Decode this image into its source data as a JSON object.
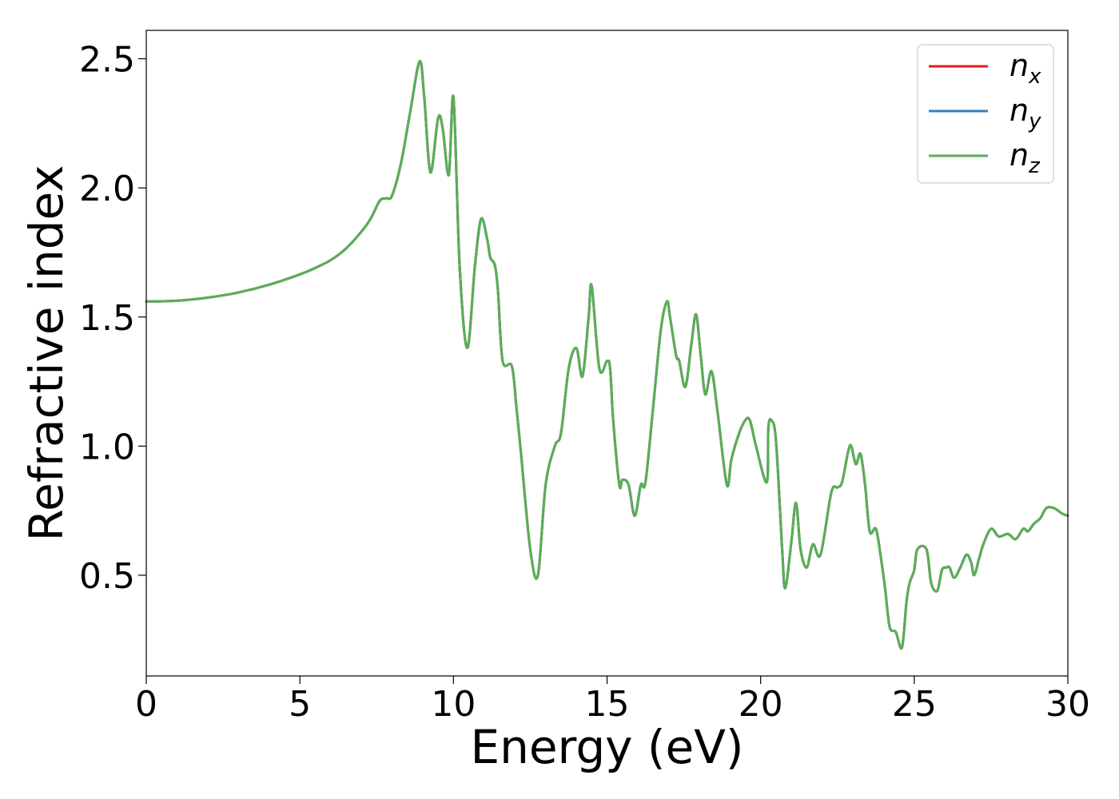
{
  "chart_data": {
    "type": "line",
    "title": "",
    "xlabel": "Energy (eV)",
    "ylabel": "Refractive index",
    "xlim": [
      0,
      30
    ],
    "ylim": [
      0.11,
      2.61
    ],
    "xticks": [
      0,
      5,
      10,
      15,
      20,
      25,
      30
    ],
    "yticks": [
      0.5,
      1.0,
      1.5,
      2.0,
      2.5
    ],
    "xtick_labels": [
      "0",
      "5",
      "10",
      "15",
      "20",
      "25",
      "30"
    ],
    "ytick_labels": [
      "0.5",
      "1.0",
      "1.5",
      "2.0",
      "2.5"
    ],
    "grid": false,
    "legend_position": "top-right",
    "x": [
      0,
      1,
      2,
      3,
      4,
      5,
      5.5,
      6,
      6.5,
      7,
      7.3,
      7.6,
      7.8,
      8.0,
      8.3,
      8.6,
      8.9,
      9.05,
      9.25,
      9.5,
      9.65,
      9.85,
      10.0,
      10.2,
      10.45,
      10.7,
      10.9,
      11.1,
      11.2,
      11.35,
      11.45,
      11.6,
      11.9,
      12.05,
      12.2,
      12.5,
      12.75,
      13.0,
      13.3,
      13.5,
      13.75,
      14.0,
      14.2,
      14.4,
      14.5,
      14.75,
      15.0,
      15.1,
      15.2,
      15.4,
      15.5,
      15.7,
      15.9,
      16.1,
      16.25,
      16.5,
      16.75,
      16.95,
      17.05,
      17.25,
      17.35,
      17.55,
      17.75,
      17.9,
      18.05,
      18.2,
      18.4,
      18.6,
      18.9,
      19.05,
      19.3,
      19.5,
      19.65,
      19.85,
      20.2,
      20.25,
      20.35,
      20.5,
      20.7,
      20.8,
      21.0,
      21.15,
      21.3,
      21.5,
      21.7,
      21.95,
      22.3,
      22.5,
      22.65,
      22.85,
      22.95,
      23.1,
      23.25,
      23.4,
      23.55,
      23.75,
      23.9,
      24.05,
      24.2,
      24.4,
      24.6,
      24.75,
      24.85,
      25.0,
      25.1,
      25.4,
      25.55,
      25.75,
      25.9,
      26.05,
      26.15,
      26.3,
      26.5,
      26.7,
      26.85,
      26.95,
      27.1,
      27.25,
      27.5,
      27.75,
      28.05,
      28.3,
      28.55,
      28.7,
      28.9,
      29.1,
      29.3,
      29.55,
      29.8,
      30.0
    ],
    "series": [
      {
        "name": "n_x",
        "color": "#e41a1c",
        "values": [
          1.56,
          1.563,
          1.575,
          1.595,
          1.625,
          1.665,
          1.69,
          1.72,
          1.765,
          1.83,
          1.88,
          1.95,
          1.96,
          1.97,
          2.1,
          2.3,
          2.49,
          2.35,
          2.06,
          2.27,
          2.23,
          2.05,
          2.35,
          1.7,
          1.38,
          1.7,
          1.88,
          1.8,
          1.73,
          1.7,
          1.6,
          1.33,
          1.31,
          1.15,
          0.97,
          0.6,
          0.5,
          0.85,
          1.0,
          1.05,
          1.3,
          1.38,
          1.27,
          1.5,
          1.62,
          1.3,
          1.33,
          1.3,
          1.1,
          0.85,
          0.87,
          0.85,
          0.73,
          0.85,
          0.86,
          1.15,
          1.45,
          1.56,
          1.5,
          1.35,
          1.33,
          1.23,
          1.4,
          1.51,
          1.35,
          1.2,
          1.29,
          1.13,
          0.85,
          0.95,
          1.05,
          1.1,
          1.1,
          1.0,
          0.86,
          1.07,
          1.1,
          1.02,
          0.6,
          0.45,
          0.63,
          0.78,
          0.6,
          0.53,
          0.62,
          0.58,
          0.82,
          0.84,
          0.86,
          0.98,
          1.0,
          0.93,
          0.97,
          0.85,
          0.67,
          0.68,
          0.58,
          0.45,
          0.3,
          0.28,
          0.22,
          0.4,
          0.47,
          0.52,
          0.6,
          0.6,
          0.47,
          0.44,
          0.52,
          0.53,
          0.53,
          0.49,
          0.53,
          0.58,
          0.55,
          0.5,
          0.56,
          0.62,
          0.68,
          0.65,
          0.66,
          0.64,
          0.68,
          0.67,
          0.7,
          0.72,
          0.76,
          0.76,
          0.74,
          0.73
        ]
      },
      {
        "name": "n_y",
        "color": "#377eb8",
        "values": [
          1.56,
          1.563,
          1.575,
          1.595,
          1.625,
          1.665,
          1.69,
          1.72,
          1.765,
          1.83,
          1.88,
          1.95,
          1.96,
          1.97,
          2.1,
          2.3,
          2.49,
          2.35,
          2.06,
          2.27,
          2.23,
          2.05,
          2.35,
          1.7,
          1.38,
          1.7,
          1.88,
          1.8,
          1.73,
          1.7,
          1.6,
          1.33,
          1.31,
          1.15,
          0.97,
          0.6,
          0.5,
          0.85,
          1.0,
          1.05,
          1.3,
          1.38,
          1.27,
          1.5,
          1.62,
          1.3,
          1.33,
          1.3,
          1.1,
          0.85,
          0.87,
          0.85,
          0.73,
          0.85,
          0.86,
          1.15,
          1.45,
          1.56,
          1.5,
          1.35,
          1.33,
          1.23,
          1.4,
          1.51,
          1.35,
          1.2,
          1.29,
          1.13,
          0.85,
          0.95,
          1.05,
          1.1,
          1.1,
          1.0,
          0.86,
          1.07,
          1.1,
          1.02,
          0.6,
          0.45,
          0.63,
          0.78,
          0.6,
          0.53,
          0.62,
          0.58,
          0.82,
          0.84,
          0.86,
          0.98,
          1.0,
          0.93,
          0.97,
          0.85,
          0.67,
          0.68,
          0.58,
          0.45,
          0.3,
          0.28,
          0.22,
          0.4,
          0.47,
          0.52,
          0.6,
          0.6,
          0.47,
          0.44,
          0.52,
          0.53,
          0.53,
          0.49,
          0.53,
          0.58,
          0.55,
          0.5,
          0.56,
          0.62,
          0.68,
          0.65,
          0.66,
          0.64,
          0.68,
          0.67,
          0.7,
          0.72,
          0.76,
          0.76,
          0.74,
          0.73
        ]
      },
      {
        "name": "n_z",
        "color": "#5aae55",
        "values": [
          1.56,
          1.563,
          1.575,
          1.595,
          1.625,
          1.665,
          1.69,
          1.72,
          1.765,
          1.83,
          1.88,
          1.95,
          1.96,
          1.97,
          2.1,
          2.3,
          2.49,
          2.35,
          2.06,
          2.27,
          2.23,
          2.05,
          2.35,
          1.7,
          1.38,
          1.7,
          1.88,
          1.8,
          1.73,
          1.7,
          1.6,
          1.33,
          1.31,
          1.15,
          0.97,
          0.6,
          0.5,
          0.85,
          1.0,
          1.05,
          1.3,
          1.38,
          1.27,
          1.5,
          1.62,
          1.3,
          1.33,
          1.3,
          1.1,
          0.85,
          0.87,
          0.85,
          0.73,
          0.85,
          0.86,
          1.15,
          1.45,
          1.56,
          1.5,
          1.35,
          1.33,
          1.23,
          1.4,
          1.51,
          1.35,
          1.2,
          1.29,
          1.13,
          0.85,
          0.95,
          1.05,
          1.1,
          1.1,
          1.0,
          0.86,
          1.07,
          1.1,
          1.02,
          0.6,
          0.45,
          0.63,
          0.78,
          0.6,
          0.53,
          0.62,
          0.58,
          0.82,
          0.84,
          0.86,
          0.98,
          1.0,
          0.93,
          0.97,
          0.85,
          0.67,
          0.68,
          0.58,
          0.45,
          0.3,
          0.28,
          0.22,
          0.4,
          0.47,
          0.52,
          0.6,
          0.6,
          0.47,
          0.44,
          0.52,
          0.53,
          0.53,
          0.49,
          0.53,
          0.58,
          0.55,
          0.5,
          0.56,
          0.62,
          0.68,
          0.65,
          0.66,
          0.64,
          0.68,
          0.67,
          0.7,
          0.72,
          0.76,
          0.76,
          0.74,
          0.73
        ]
      }
    ],
    "legend": [
      {
        "base": "n",
        "sub": "x",
        "color": "#e41a1c"
      },
      {
        "base": "n",
        "sub": "y",
        "color": "#377eb8"
      },
      {
        "base": "n",
        "sub": "z",
        "color": "#5aae55"
      }
    ]
  }
}
